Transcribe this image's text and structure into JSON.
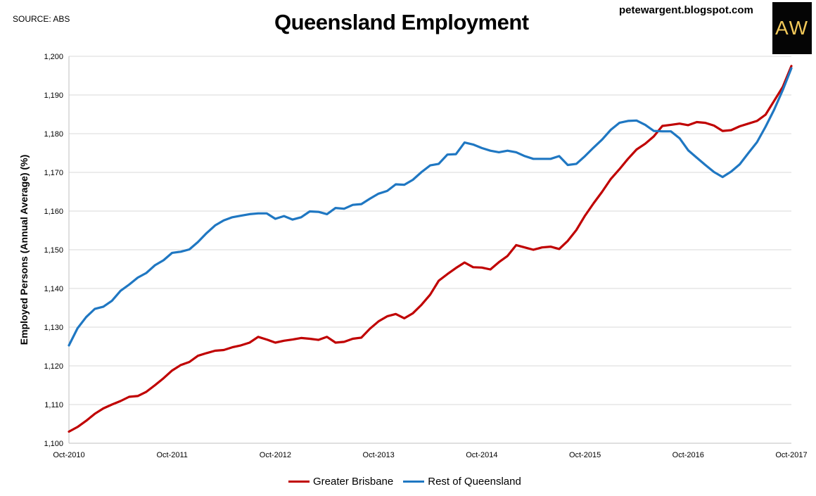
{
  "header": {
    "source": "SOURCE: ABS",
    "title": "Queensland Employment",
    "blog": "petewargent.blogspot.com",
    "logo_text": "AW",
    "logo_color": "#f3c95a"
  },
  "chart_data": {
    "type": "line",
    "title": "Queensland Employment",
    "ylabel": "Employed Persons (Annual Average) (%)",
    "xlabel": "",
    "ylim": [
      1100,
      1200
    ],
    "y_ticks": [
      1100,
      1110,
      1120,
      1130,
      1140,
      1150,
      1160,
      1170,
      1180,
      1190,
      1200
    ],
    "y_tick_labels": [
      "1,100",
      "1,110",
      "1,120",
      "1,130",
      "1,140",
      "1,150",
      "1,160",
      "1,170",
      "1,180",
      "1,190",
      "1,200"
    ],
    "x_tick_labels": [
      "Oct-2010",
      "Oct-2011",
      "Oct-2012",
      "Oct-2013",
      "Oct-2014",
      "Oct-2015",
      "Oct-2016",
      "Oct-2017"
    ],
    "x_months_per_label": 12,
    "grid": true,
    "legend_position": "bottom",
    "series": [
      {
        "name": "Greater Brisbane",
        "color": "#c00000",
        "values": [
          1103.0,
          1104.2,
          1105.8,
          1107.6,
          1109.0,
          1110.0,
          1110.9,
          1112.0,
          1112.2,
          1113.3,
          1115.0,
          1116.8,
          1118.8,
          1120.2,
          1121.0,
          1122.6,
          1123.3,
          1123.9,
          1124.1,
          1124.8,
          1125.3,
          1126.0,
          1127.5,
          1126.8,
          1126.0,
          1126.5,
          1126.8,
          1127.2,
          1127.0,
          1126.7,
          1127.5,
          1126.0,
          1126.2,
          1127.0,
          1127.3,
          1129.6,
          1131.5,
          1132.8,
          1133.4,
          1132.3,
          1133.6,
          1135.8,
          1138.4,
          1142.0,
          1143.7,
          1145.3,
          1146.7,
          1145.5,
          1145.4,
          1144.9,
          1146.8,
          1148.4,
          1151.2,
          1150.6,
          1150.0,
          1150.6,
          1150.8,
          1150.2,
          1152.3,
          1155.1,
          1158.8,
          1162.0,
          1165.0,
          1168.3,
          1170.8,
          1173.5,
          1175.9,
          1177.4,
          1179.3,
          1182.0,
          1182.3,
          1182.6,
          1182.2,
          1183.0,
          1182.8,
          1182.1,
          1180.7,
          1180.9,
          1181.9,
          1182.6,
          1183.3,
          1184.9,
          1188.5,
          1192.1,
          1197.5
        ]
      },
      {
        "name": "Rest of Queensland",
        "color": "#1f77c2",
        "values": [
          1125.3,
          1129.7,
          1132.6,
          1134.7,
          1135.3,
          1136.8,
          1139.4,
          1141.0,
          1142.8,
          1144.0,
          1146.0,
          1147.3,
          1149.2,
          1149.5,
          1150.1,
          1152.0,
          1154.3,
          1156.3,
          1157.6,
          1158.4,
          1158.8,
          1159.2,
          1159.4,
          1159.4,
          1158.0,
          1158.7,
          1157.8,
          1158.4,
          1159.9,
          1159.8,
          1159.2,
          1160.8,
          1160.6,
          1161.6,
          1161.8,
          1163.2,
          1164.5,
          1165.2,
          1166.9,
          1166.8,
          1168.1,
          1170.1,
          1171.8,
          1172.2,
          1174.6,
          1174.7,
          1177.7,
          1177.2,
          1176.3,
          1175.6,
          1175.2,
          1175.6,
          1175.2,
          1174.2,
          1173.5,
          1173.5,
          1173.5,
          1174.2,
          1171.9,
          1172.2,
          1174.2,
          1176.4,
          1178.5,
          1181.0,
          1182.8,
          1183.3,
          1183.4,
          1182.3,
          1180.7,
          1180.6,
          1180.6,
          1178.8,
          1175.7,
          1173.8,
          1171.9,
          1170.1,
          1168.8,
          1170.2,
          1172.1,
          1175.0,
          1177.8,
          1181.8,
          1186.2,
          1191.3,
          1196.9
        ]
      }
    ]
  }
}
